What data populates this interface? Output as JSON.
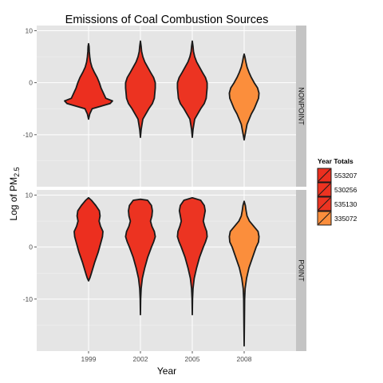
{
  "chart_data": {
    "type": "violin",
    "title": "Emissions of Coal Combustion Sources",
    "xlabel": "Year",
    "ylabel_main": "Log of PM",
    "ylabel_sub": "2.5",
    "categories": [
      "1999",
      "2002",
      "2005",
      "2008"
    ],
    "ylim": [
      -20,
      11
    ],
    "yticks": [
      10,
      0,
      -10
    ],
    "facets": [
      {
        "name": "NONPOINT",
        "violins": [
          {
            "year": "1999",
            "fill": "#ec2f1f",
            "profile": [
              [
                -7,
                0
              ],
              [
                -6,
                0.05
              ],
              [
                -5,
                0.15
              ],
              [
                -4,
                0.9
              ],
              [
                -3.5,
                1.0
              ],
              [
                -3,
                0.72
              ],
              [
                -2,
                0.62
              ],
              [
                -1,
                0.52
              ],
              [
                0,
                0.45
              ],
              [
                1,
                0.36
              ],
              [
                2,
                0.24
              ],
              [
                3,
                0.14
              ],
              [
                4,
                0.08
              ],
              [
                5,
                0.05
              ],
              [
                6,
                0.03
              ],
              [
                7,
                0.02
              ],
              [
                7.5,
                0
              ]
            ]
          },
          {
            "year": "2002",
            "fill": "#ec3321",
            "profile": [
              [
                -10.5,
                0
              ],
              [
                -9,
                0.03
              ],
              [
                -7,
                0.1
              ],
              [
                -5,
                0.35
              ],
              [
                -4,
                0.5
              ],
              [
                -3,
                0.58
              ],
              [
                -1,
                0.62
              ],
              [
                0,
                0.62
              ],
              [
                1,
                0.55
              ],
              [
                2,
                0.42
              ],
              [
                3,
                0.3
              ],
              [
                4,
                0.18
              ],
              [
                5,
                0.1
              ],
              [
                6,
                0.05
              ],
              [
                7,
                0.03
              ],
              [
                8,
                0
              ]
            ]
          },
          {
            "year": "2005",
            "fill": "#ec3422",
            "profile": [
              [
                -10.5,
                0
              ],
              [
                -9,
                0.03
              ],
              [
                -7,
                0.1
              ],
              [
                -5,
                0.35
              ],
              [
                -4,
                0.5
              ],
              [
                -3,
                0.58
              ],
              [
                -1,
                0.62
              ],
              [
                0,
                0.62
              ],
              [
                1,
                0.55
              ],
              [
                2,
                0.42
              ],
              [
                3,
                0.3
              ],
              [
                4,
                0.18
              ],
              [
                5,
                0.1
              ],
              [
                6,
                0.05
              ],
              [
                7,
                0.03
              ],
              [
                8,
                0
              ]
            ]
          },
          {
            "year": "2008",
            "fill": "#fb8e3c",
            "profile": [
              [
                -11,
                0
              ],
              [
                -10,
                0.04
              ],
              [
                -8,
                0.12
              ],
              [
                -6,
                0.3
              ],
              [
                -5,
                0.42
              ],
              [
                -3,
                0.6
              ],
              [
                -2,
                0.62
              ],
              [
                -1,
                0.56
              ],
              [
                0,
                0.42
              ],
              [
                1,
                0.3
              ],
              [
                2,
                0.2
              ],
              [
                3,
                0.12
              ],
              [
                4,
                0.07
              ],
              [
                5,
                0.03
              ],
              [
                5.5,
                0
              ]
            ]
          }
        ]
      },
      {
        "name": "POINT",
        "violins": [
          {
            "year": "1999",
            "fill": "#ec2f1f",
            "profile": [
              [
                -6.5,
                0
              ],
              [
                -6,
                0.05
              ],
              [
                -5,
                0.12
              ],
              [
                -3,
                0.25
              ],
              [
                -1,
                0.4
              ],
              [
                0,
                0.46
              ],
              [
                1,
                0.52
              ],
              [
                2,
                0.58
              ],
              [
                3,
                0.6
              ],
              [
                4,
                0.5
              ],
              [
                5,
                0.44
              ],
              [
                6,
                0.48
              ],
              [
                7,
                0.45
              ],
              [
                8,
                0.3
              ],
              [
                9,
                0.12
              ],
              [
                9.5,
                0
              ]
            ]
          },
          {
            "year": "2002",
            "fill": "#ec3321",
            "profile": [
              [
                -13,
                0
              ],
              [
                -10,
                0.01
              ],
              [
                -8,
                0.03
              ],
              [
                -6,
                0.08
              ],
              [
                -4,
                0.18
              ],
              [
                -2,
                0.3
              ],
              [
                0,
                0.46
              ],
              [
                1,
                0.55
              ],
              [
                2,
                0.62
              ],
              [
                3,
                0.58
              ],
              [
                4,
                0.48
              ],
              [
                5,
                0.42
              ],
              [
                6,
                0.48
              ],
              [
                7,
                0.5
              ],
              [
                8,
                0.46
              ],
              [
                9,
                0.3
              ],
              [
                9.2,
                0
              ]
            ]
          },
          {
            "year": "2005",
            "fill": "#ec3422",
            "profile": [
              [
                -13,
                0
              ],
              [
                -10,
                0.01
              ],
              [
                -8,
                0.03
              ],
              [
                -6,
                0.08
              ],
              [
                -4,
                0.18
              ],
              [
                -2,
                0.3
              ],
              [
                0,
                0.46
              ],
              [
                1,
                0.55
              ],
              [
                2,
                0.62
              ],
              [
                3,
                0.6
              ],
              [
                4,
                0.52
              ],
              [
                5,
                0.46
              ],
              [
                6,
                0.5
              ],
              [
                7,
                0.54
              ],
              [
                8,
                0.5
              ],
              [
                9,
                0.35
              ],
              [
                9.5,
                0
              ]
            ]
          },
          {
            "year": "2008",
            "fill": "#fb8e3c",
            "profile": [
              [
                -19,
                0
              ],
              [
                -15,
                0.01
              ],
              [
                -10,
                0.02
              ],
              [
                -8,
                0.04
              ],
              [
                -6,
                0.1
              ],
              [
                -4,
                0.2
              ],
              [
                -2,
                0.35
              ],
              [
                0,
                0.5
              ],
              [
                1,
                0.6
              ],
              [
                2,
                0.62
              ],
              [
                3,
                0.58
              ],
              [
                4,
                0.4
              ],
              [
                5,
                0.22
              ],
              [
                6,
                0.12
              ],
              [
                7,
                0.08
              ],
              [
                8,
                0.05
              ],
              [
                8.8,
                0
              ]
            ]
          }
        ]
      }
    ],
    "legend": {
      "title": "Year Totals",
      "placement": "right",
      "entries": [
        {
          "label": "553207",
          "fill": "#ec2f1f"
        },
        {
          "label": "530256",
          "fill": "#ec3321"
        },
        {
          "label": "535130",
          "fill": "#ec3422"
        },
        {
          "label": "335072",
          "fill": "#fb8e3c"
        }
      ]
    },
    "colors": {
      "panel_bg": "#e5e5e5",
      "grid": "#ffffff",
      "strip_bg": "#c4c4c4",
      "outline": "#1a1a1a"
    }
  }
}
